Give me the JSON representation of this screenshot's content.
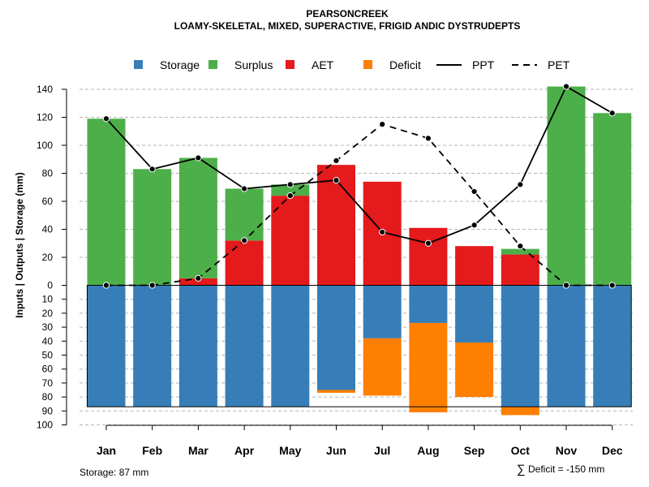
{
  "chart_data": {
    "type": "bar",
    "title": "PEARSONCREEK",
    "subtitle": "LOAMY-SKELETAL, MIXED, SUPERACTIVE, FRIGID ANDIC DYSTRUDEPTS",
    "ylabel": "Inputs | Outputs | Storage    (mm)",
    "categories": [
      "Jan",
      "Feb",
      "Mar",
      "Apr",
      "May",
      "Jun",
      "Jul",
      "Aug",
      "Sep",
      "Oct",
      "Nov",
      "Dec"
    ],
    "upper_ylim": [
      0,
      150
    ],
    "upper_ticks": [
      0,
      20,
      40,
      60,
      80,
      100,
      120,
      140
    ],
    "lower_ylim": [
      0,
      100
    ],
    "lower_ticks": [
      10,
      20,
      30,
      40,
      50,
      60,
      70,
      80,
      90,
      100
    ],
    "grid": true,
    "legend_position": "top",
    "legend": [
      {
        "label": "Storage",
        "kind": "box",
        "color": "#377EB8"
      },
      {
        "label": "Surplus",
        "kind": "box",
        "color": "#4DAF4A"
      },
      {
        "label": "AET",
        "kind": "box",
        "color": "#E41A1C"
      },
      {
        "label": "Deficit",
        "kind": "box",
        "color": "#FF7F00"
      },
      {
        "label": "PPT",
        "kind": "solid"
      },
      {
        "label": "PET",
        "kind": "dashed"
      }
    ],
    "series": [
      {
        "name": "AET",
        "color": "#E41A1C",
        "values": [
          0,
          0,
          5,
          32,
          64,
          86,
          74,
          41,
          28,
          22,
          0,
          0
        ]
      },
      {
        "name": "Surplus",
        "color": "#4DAF4A",
        "values": [
          119,
          83,
          86,
          37,
          8,
          0,
          0,
          0,
          0,
          4,
          142,
          123
        ]
      },
      {
        "name": "Storage",
        "color": "#377EB8",
        "values": [
          87,
          87,
          87,
          87,
          87,
          75,
          38,
          27,
          41,
          87,
          87,
          87
        ]
      },
      {
        "name": "Deficit",
        "color": "#FF7F00",
        "values": [
          0,
          0,
          0,
          0,
          0,
          2,
          41,
          64,
          39,
          6,
          0,
          0
        ]
      },
      {
        "name": "PPT",
        "style": "solid",
        "values": [
          119,
          83,
          91,
          69,
          72,
          75,
          38,
          30,
          43,
          72,
          142,
          123
        ]
      },
      {
        "name": "PET",
        "style": "dashed",
        "values": [
          0,
          0,
          5,
          32,
          64,
          89,
          115,
          105,
          67,
          28,
          0,
          0
        ]
      }
    ],
    "storage_capacity": 87,
    "annotations": {
      "storage": "Storage: 87 mm",
      "deficit_symbol": "∑",
      "deficit": "Deficit = -150 mm"
    }
  }
}
